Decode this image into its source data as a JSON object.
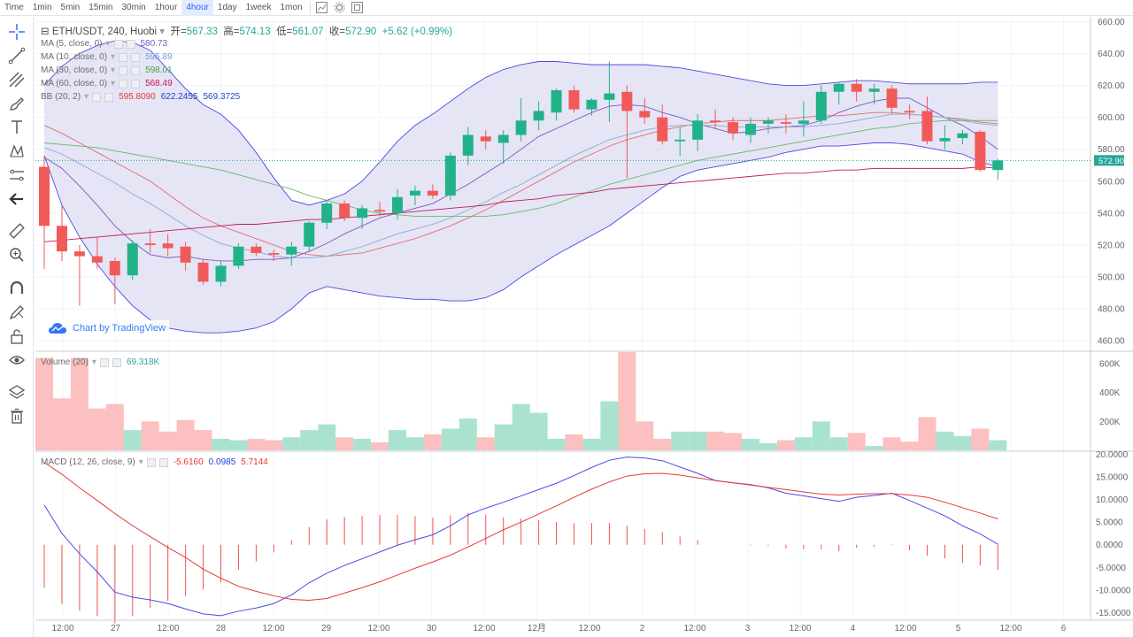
{
  "toolbar": {
    "timeframes": [
      "Time",
      "1min",
      "5min",
      "15min",
      "30min",
      "1hour",
      "4hour",
      "1day",
      "1week",
      "1mon"
    ],
    "active": "4hour"
  },
  "header": {
    "symbol": "ETH/USDT, 240, Huobi",
    "open_label": "开=",
    "open": "567.33",
    "high_label": "高=",
    "high": "574.13",
    "low_label": "低=",
    "low": "561.07",
    "close_label": "收=",
    "close": "572.90",
    "change": "+5.62 (+0.99%)"
  },
  "indicators": {
    "ma5": {
      "label": "MA (5, close, 0)",
      "value": "580.73",
      "color": "#7e57c2"
    },
    "ma10": {
      "label": "MA (10, close, 0)",
      "value": "595.89",
      "color": "#8fa8d8"
    },
    "ma30": {
      "label": "MA (30, close, 0)",
      "value": "598.01",
      "color": "#43a047"
    },
    "ma60": {
      "label": "MA (60, close, 0)",
      "value": "568.49",
      "color": "#c2185b"
    },
    "bb": {
      "label": "BB (20, 2)",
      "v1": "595.8090",
      "v2": "622.2455",
      "v3": "569.3725"
    },
    "volume": {
      "label": "Volume (20)",
      "value": "69.318K"
    },
    "macd": {
      "label": "MACD (12, 26, close, 9)",
      "v1": "-5.6160",
      "v2": "0.0985",
      "v3": "5.7144"
    }
  },
  "watermark": "Chart by TradingView",
  "price_badge": "572.90",
  "colors": {
    "up": "#26a69a",
    "down": "#ef5350",
    "up_body": "#22b28a",
    "down_body": "#f25a5a",
    "vol_up": "#a9e3d0",
    "vol_down": "#fbc0bf"
  },
  "chart_data": {
    "type": "candlestick",
    "price_axis": {
      "ticks": [
        460,
        480,
        500,
        520,
        540,
        560,
        580,
        600,
        620,
        640,
        660
      ],
      "ylim": [
        454,
        663
      ]
    },
    "volume_axis": {
      "ticks": [
        "200K",
        "400K",
        "600K"
      ],
      "values": [
        200,
        400,
        600
      ],
      "ylim": [
        0,
        680
      ]
    },
    "macd_axis": {
      "ticks": [
        "-15.0000",
        "-10.0000",
        "-5.0000",
        "0.0000",
        "5.0000",
        "10.0000",
        "15.0000",
        "20.0000"
      ],
      "values": [
        -15,
        -10,
        -5,
        0,
        5,
        10,
        15,
        20
      ],
      "ylim": [
        -16.5,
        20.5
      ]
    },
    "x_ticks": [
      "12:00",
      "27",
      "12:00",
      "28",
      "12:00",
      "29",
      "12:00",
      "30",
      "12:00",
      "12月",
      "12:00",
      "2",
      "12:00",
      "3",
      "12:00",
      "4",
      "12:00",
      "5",
      "12:00",
      "6"
    ],
    "candles": [
      {
        "o": 569,
        "h": 576,
        "l": 505,
        "c": 532
      },
      {
        "o": 532,
        "h": 545,
        "l": 510,
        "c": 516
      },
      {
        "o": 516,
        "h": 520,
        "l": 482,
        "c": 513
      },
      {
        "o": 513,
        "h": 525,
        "l": 505,
        "c": 509
      },
      {
        "o": 510,
        "h": 512,
        "l": 483,
        "c": 501
      },
      {
        "o": 501,
        "h": 523,
        "l": 498,
        "c": 521
      },
      {
        "o": 521,
        "h": 530,
        "l": 515,
        "c": 520
      },
      {
        "o": 521,
        "h": 527,
        "l": 513,
        "c": 518
      },
      {
        "o": 519,
        "h": 522,
        "l": 504,
        "c": 509
      },
      {
        "o": 509,
        "h": 511,
        "l": 495,
        "c": 497
      },
      {
        "o": 497,
        "h": 510,
        "l": 494,
        "c": 507
      },
      {
        "o": 507,
        "h": 521,
        "l": 505,
        "c": 519
      },
      {
        "o": 519,
        "h": 521,
        "l": 513,
        "c": 515
      },
      {
        "o": 515,
        "h": 517,
        "l": 510,
        "c": 514
      },
      {
        "o": 514,
        "h": 522,
        "l": 507,
        "c": 519
      },
      {
        "o": 519,
        "h": 535,
        "l": 516,
        "c": 534
      },
      {
        "o": 534,
        "h": 548,
        "l": 530,
        "c": 546
      },
      {
        "o": 546,
        "h": 548,
        "l": 535,
        "c": 537
      },
      {
        "o": 537,
        "h": 545,
        "l": 530,
        "c": 543
      },
      {
        "o": 542,
        "h": 547,
        "l": 538,
        "c": 541
      },
      {
        "o": 540,
        "h": 555,
        "l": 536,
        "c": 550
      },
      {
        "o": 551,
        "h": 557,
        "l": 545,
        "c": 554
      },
      {
        "o": 554,
        "h": 558,
        "l": 549,
        "c": 551
      },
      {
        "o": 551,
        "h": 578,
        "l": 548,
        "c": 576
      },
      {
        "o": 576,
        "h": 594,
        "l": 570,
        "c": 589
      },
      {
        "o": 588,
        "h": 592,
        "l": 580,
        "c": 585
      },
      {
        "o": 584,
        "h": 592,
        "l": 571,
        "c": 589
      },
      {
        "o": 589,
        "h": 612,
        "l": 585,
        "c": 598
      },
      {
        "o": 598,
        "h": 610,
        "l": 592,
        "c": 604
      },
      {
        "o": 603,
        "h": 618,
        "l": 598,
        "c": 617
      },
      {
        "o": 617,
        "h": 620,
        "l": 603,
        "c": 605
      },
      {
        "o": 605,
        "h": 612,
        "l": 601,
        "c": 611
      },
      {
        "o": 611,
        "h": 635,
        "l": 597,
        "c": 615
      },
      {
        "o": 616,
        "h": 620,
        "l": 562,
        "c": 604
      },
      {
        "o": 604,
        "h": 612,
        "l": 596,
        "c": 600
      },
      {
        "o": 600,
        "h": 608,
        "l": 583,
        "c": 585
      },
      {
        "o": 585,
        "h": 594,
        "l": 576,
        "c": 586
      },
      {
        "o": 586,
        "h": 602,
        "l": 579,
        "c": 598
      },
      {
        "o": 598,
        "h": 605,
        "l": 593,
        "c": 597
      },
      {
        "o": 597,
        "h": 600,
        "l": 586,
        "c": 590
      },
      {
        "o": 589,
        "h": 600,
        "l": 584,
        "c": 596
      },
      {
        "o": 596,
        "h": 600,
        "l": 590,
        "c": 598
      },
      {
        "o": 597,
        "h": 602,
        "l": 590,
        "c": 596
      },
      {
        "o": 596,
        "h": 610,
        "l": 588,
        "c": 598
      },
      {
        "o": 598,
        "h": 620,
        "l": 596,
        "c": 616
      },
      {
        "o": 616,
        "h": 622,
        "l": 608,
        "c": 621
      },
      {
        "o": 621,
        "h": 624,
        "l": 610,
        "c": 616
      },
      {
        "o": 616,
        "h": 621,
        "l": 608,
        "c": 618
      },
      {
        "o": 618,
        "h": 620,
        "l": 602,
        "c": 606
      },
      {
        "o": 604,
        "h": 608,
        "l": 599,
        "c": 603
      },
      {
        "o": 604,
        "h": 613,
        "l": 583,
        "c": 585
      },
      {
        "o": 585,
        "h": 595,
        "l": 580,
        "c": 587
      },
      {
        "o": 587,
        "h": 592,
        "l": 583,
        "c": 590
      },
      {
        "o": 591,
        "h": 592,
        "l": 566,
        "c": 567
      },
      {
        "o": 567,
        "h": 574,
        "l": 561,
        "c": 573
      }
    ],
    "volume": [
      640,
      360,
      640,
      290,
      320,
      140,
      200,
      130,
      210,
      140,
      80,
      70,
      80,
      70,
      90,
      140,
      180,
      90,
      80,
      55,
      140,
      90,
      110,
      150,
      220,
      90,
      180,
      320,
      260,
      80,
      110,
      80,
      340,
      680,
      200,
      80,
      130,
      130,
      130,
      120,
      80,
      50,
      70,
      90,
      200,
      90,
      120,
      30,
      90,
      60,
      230,
      130,
      100,
      150,
      70
    ],
    "macd_line": [
      8.8,
      2.5,
      -2.0,
      -6.0,
      -10.5,
      -11.6,
      -12.2,
      -13.0,
      -14.2,
      -15.3,
      -15.7,
      -14.7,
      -14.0,
      -13.0,
      -11.1,
      -8.4,
      -6.3,
      -4.6,
      -3.1,
      -1.6,
      -0.1,
      1.1,
      2.2,
      4.2,
      6.6,
      8.1,
      9.4,
      10.8,
      12.2,
      13.6,
      15.3,
      17.1,
      18.7,
      19.4,
      19.2,
      18.6,
      17.2,
      15.8,
      14.2,
      13.7,
      13.3,
      12.6,
      11.4,
      10.8,
      10.2,
      9.6,
      10.5,
      10.9,
      11.4,
      9.8,
      8.1,
      6.4,
      4.2,
      2.4,
      0.1
    ],
    "signal_line": [
      18.2,
      15.6,
      12.6,
      9.8,
      6.9,
      4.2,
      1.8,
      -0.6,
      -2.8,
      -5.4,
      -7.4,
      -9.2,
      -10.3,
      -11.3,
      -12.1,
      -12.3,
      -11.9,
      -10.7,
      -9.5,
      -8.2,
      -6.7,
      -5.2,
      -3.8,
      -2.3,
      -0.5,
      1.4,
      3.3,
      5.0,
      6.8,
      8.6,
      10.5,
      12.3,
      13.9,
      15.2,
      15.7,
      15.8,
      15.4,
      14.8,
      14.2,
      13.7,
      13.2,
      12.7,
      12.2,
      11.7,
      11.2,
      11.0,
      11.2,
      11.3,
      11.3,
      11.0,
      10.5,
      9.4,
      8.2,
      7.0,
      5.7
    ],
    "macd_histogram": [
      -9.5,
      -13.1,
      -14.6,
      -15.8,
      -17.4,
      -15.8,
      -14.0,
      -12.4,
      -11.4,
      -9.9,
      -8.3,
      -5.5,
      -3.7,
      -1.7,
      1.0,
      3.9,
      5.6,
      6.1,
      6.4,
      6.6,
      6.6,
      6.3,
      6.0,
      6.5,
      7.1,
      6.7,
      6.1,
      5.8,
      5.4,
      5.0,
      4.8,
      4.8,
      4.8,
      4.2,
      3.5,
      2.8,
      1.8,
      1.0,
      0.0,
      0.0,
      -0.2,
      -0.3,
      -0.8,
      -1.0,
      -1.0,
      -1.4,
      -0.7,
      -0.4,
      0.1,
      -1.2,
      -2.4,
      -3.0,
      -4.0,
      -4.6,
      -5.6
    ],
    "ma5": [
      575,
      568,
      557,
      545,
      532,
      522,
      514,
      512,
      513,
      511,
      510,
      510,
      511,
      511,
      512,
      516,
      521,
      527,
      532,
      537,
      540,
      543,
      546,
      552,
      558,
      565,
      572,
      580,
      588,
      593,
      598,
      603,
      607,
      608,
      607,
      603,
      600,
      596,
      593,
      590,
      591,
      593,
      594,
      595,
      598,
      603,
      607,
      610,
      612,
      612,
      606,
      600,
      595,
      588,
      580
    ],
    "ma10": [
      581,
      577,
      571,
      565,
      559,
      552,
      546,
      539,
      532,
      526,
      521,
      518,
      516,
      513,
      512,
      512,
      513,
      516,
      519,
      523,
      527,
      530,
      533,
      537,
      542,
      547,
      553,
      558,
      564,
      570,
      576,
      581,
      586,
      589,
      592,
      594,
      595,
      595,
      595,
      594,
      594,
      594,
      594,
      594,
      595,
      596,
      598,
      600,
      602,
      602,
      601,
      600,
      598,
      596,
      595
    ],
    "ma30": [
      584,
      583,
      582,
      581,
      579,
      577,
      575,
      573,
      571,
      569,
      567,
      564,
      561,
      558,
      555,
      551,
      548,
      545,
      542,
      540,
      539,
      538,
      538,
      538,
      538,
      538,
      539,
      541,
      543,
      546,
      550,
      554,
      558,
      561,
      564,
      567,
      570,
      573,
      575,
      577,
      579,
      581,
      583,
      585,
      587,
      589,
      591,
      593,
      594,
      596,
      597,
      598,
      598,
      598,
      598
    ],
    "ma60": [
      522,
      523,
      524,
      525,
      526,
      527,
      528,
      529,
      530,
      531,
      532,
      533,
      533,
      534,
      535,
      536,
      536,
      537,
      538,
      539,
      540,
      541,
      542,
      543,
      544,
      545,
      547,
      548,
      549,
      551,
      552,
      553,
      555,
      556,
      557,
      558,
      559,
      560,
      561,
      562,
      563,
      564,
      565,
      565,
      566,
      567,
      567,
      568,
      568,
      568,
      568,
      568,
      568,
      569,
      568
    ],
    "bb_upper": [
      620,
      632,
      640,
      645,
      648,
      647,
      642,
      630,
      618,
      608,
      602,
      592,
      578,
      562,
      548,
      545,
      548,
      552,
      560,
      572,
      585,
      595,
      602,
      610,
      618,
      625,
      630,
      633,
      635,
      635,
      634,
      633,
      633,
      633,
      633,
      632,
      631,
      629,
      627,
      625,
      623,
      621,
      620,
      620,
      621,
      622,
      623,
      623,
      622,
      621,
      621,
      621,
      621,
      622,
      622
    ],
    "bb_lower": [
      576,
      545,
      525,
      508,
      494,
      482,
      473,
      468,
      466,
      465,
      465,
      466,
      468,
      472,
      480,
      490,
      494,
      492,
      490,
      488,
      487,
      486,
      486,
      485,
      485,
      487,
      492,
      500,
      507,
      514,
      520,
      526,
      532,
      540,
      548,
      556,
      563,
      567,
      569,
      571,
      573,
      575,
      578,
      580,
      582,
      582,
      583,
      584,
      584,
      583,
      581,
      579,
      577,
      572,
      569
    ],
    "bb_mid": [
      595,
      590,
      584,
      578,
      572,
      566,
      560,
      552,
      544,
      537,
      532,
      528,
      524,
      520,
      516,
      514,
      513,
      514,
      515,
      518,
      521,
      524,
      528,
      532,
      537,
      542,
      548,
      554,
      560,
      566,
      572,
      577,
      582,
      586,
      589,
      592,
      594,
      596,
      597,
      598,
      598,
      598,
      599,
      600,
      601,
      601,
      602,
      603,
      603,
      602,
      601,
      600,
      599,
      597,
      596
    ]
  }
}
